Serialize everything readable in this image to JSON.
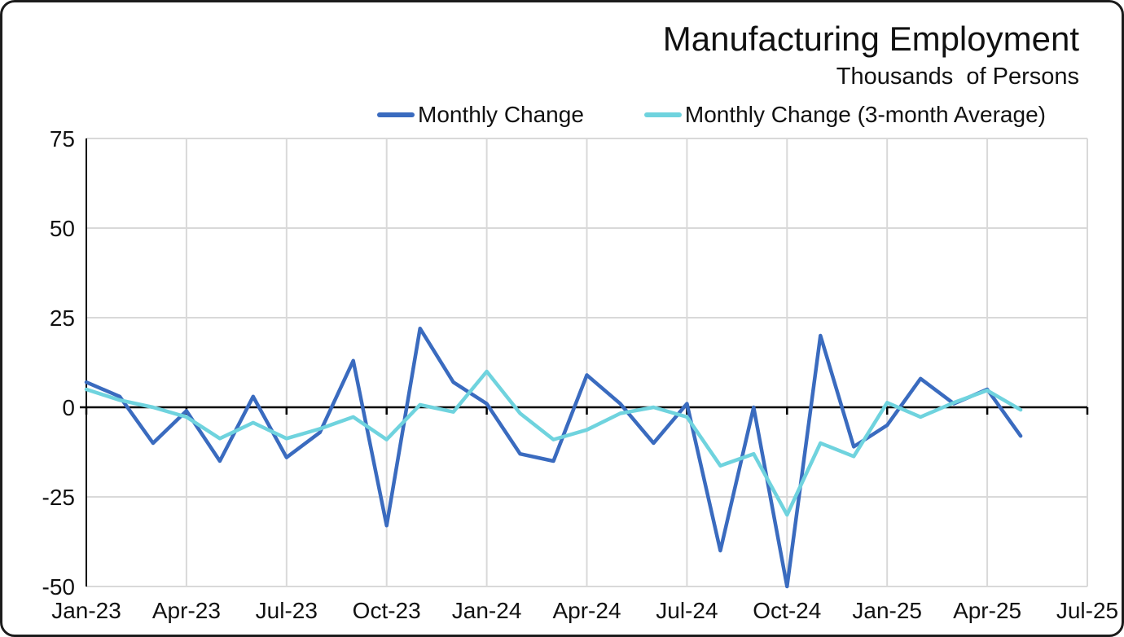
{
  "title": "Manufacturing Employment",
  "subtitle": "Thousands  of Persons",
  "legend": [
    {
      "label": "Monthly Change",
      "color": "#3A6BBF"
    },
    {
      "label": "Monthly Change (3-month Average)",
      "color": "#6FD3DE"
    }
  ],
  "chart_data": {
    "type": "line",
    "title": "Manufacturing Employment",
    "subtitle": "Thousands of Persons",
    "x": [
      "Jan-23",
      "Feb-23",
      "Mar-23",
      "Apr-23",
      "May-23",
      "Jun-23",
      "Jul-23",
      "Aug-23",
      "Sep-23",
      "Oct-23",
      "Nov-23",
      "Dec-23",
      "Jan-24",
      "Feb-24",
      "Mar-24",
      "Apr-24",
      "May-24",
      "Jun-24",
      "Jul-24",
      "Aug-24",
      "Sep-24",
      "Oct-24",
      "Nov-24",
      "Dec-24",
      "Jan-25",
      "Feb-25",
      "Mar-25",
      "Apr-25",
      "May-25"
    ],
    "series": [
      {
        "name": "Monthly Change",
        "color": "#3A6BBF",
        "values": [
          7,
          3,
          -10,
          -1,
          -15,
          3,
          -14,
          -7,
          13,
          -33,
          22,
          7,
          1,
          -13,
          -15,
          9,
          1,
          -10,
          1,
          -40,
          0,
          -50,
          20,
          -11,
          -5,
          8,
          1,
          5,
          -8
        ]
      },
      {
        "name": "Monthly Change (3-month Average)",
        "color": "#6FD3DE",
        "values": [
          5,
          2,
          0,
          -2.7,
          -8.7,
          -4.3,
          -8.7,
          -6,
          -2.7,
          -9,
          0.7,
          -1.3,
          10,
          -1.7,
          -9,
          -6.3,
          -1.7,
          0,
          -2.7,
          -16.3,
          -13,
          -30,
          -10,
          -13.7,
          1.3,
          -2.7,
          1.3,
          4.7,
          -0.7
        ]
      }
    ],
    "ylim": [
      -50,
      75
    ],
    "y_ticks": [
      75,
      50,
      25,
      0,
      -25,
      -50
    ],
    "x_ticks": [
      "Jan-23",
      "Apr-23",
      "Jul-23",
      "Oct-23",
      "Jan-24",
      "Apr-24",
      "Jul-24",
      "Oct-24",
      "Jan-25",
      "Apr-25",
      "Jul-25"
    ],
    "x_domain_months": 30,
    "grid": true,
    "legend_position": "top",
    "colors": {
      "grid": "#D9D9D9",
      "axis": "#000000",
      "text": "#111111",
      "background": "#FFFFFF"
    }
  }
}
